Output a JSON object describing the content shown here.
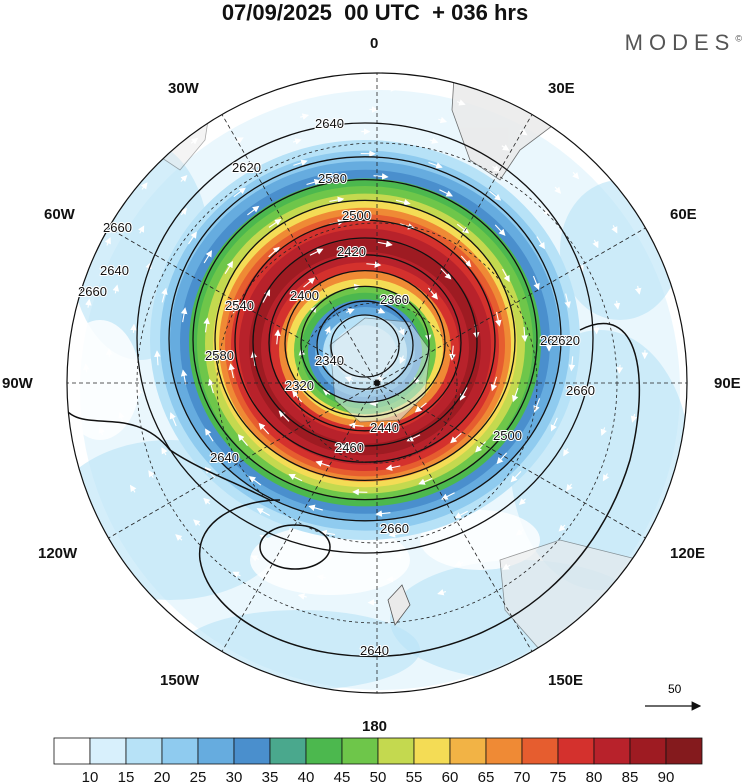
{
  "header": {
    "title": "07/09/2025  00 UTC  + 036 hrs",
    "brand": "MODES",
    "brand_mark": "©"
  },
  "map": {
    "projection": "south-polar-stereographic",
    "longitude_labels": {
      "top": "0",
      "top_right": "30E",
      "right_upper": "60E",
      "right": "90E",
      "right_lower": "120E",
      "bottom_right": "150E",
      "bottom": "180",
      "bottom_left": "150W",
      "left_lower": "120W",
      "left": "90W",
      "left_upper": "60W",
      "top_left": "30W"
    },
    "contour_labels": [
      "2640",
      "2620",
      "2580",
      "2500",
      "2420",
      "2360",
      "2400",
      "2340",
      "2320",
      "2440",
      "2460",
      "2500",
      "2540",
      "2580",
      "2600",
      "2620",
      "2660",
      "2640",
      "2660",
      "2660",
      "2660",
      "2640",
      "2640"
    ],
    "vector_reference": {
      "label": "50"
    }
  },
  "colorbar": {
    "ticks": [
      "10",
      "15",
      "20",
      "25",
      "30",
      "35",
      "40",
      "45",
      "50",
      "55",
      "60",
      "65",
      "70",
      "75",
      "80",
      "85",
      "90"
    ],
    "colors": [
      "#ffffff",
      "#d8f0fc",
      "#b7e2f7",
      "#8fcbef",
      "#66acdf",
      "#4a8fcd",
      "#4aa88d",
      "#4cb84e",
      "#6ec64a",
      "#c4d94f",
      "#f4dc55",
      "#f2b345",
      "#ef8a35",
      "#e65d2f",
      "#d4312d",
      "#b8222b",
      "#9e1b22",
      "#841a1d"
    ]
  }
}
